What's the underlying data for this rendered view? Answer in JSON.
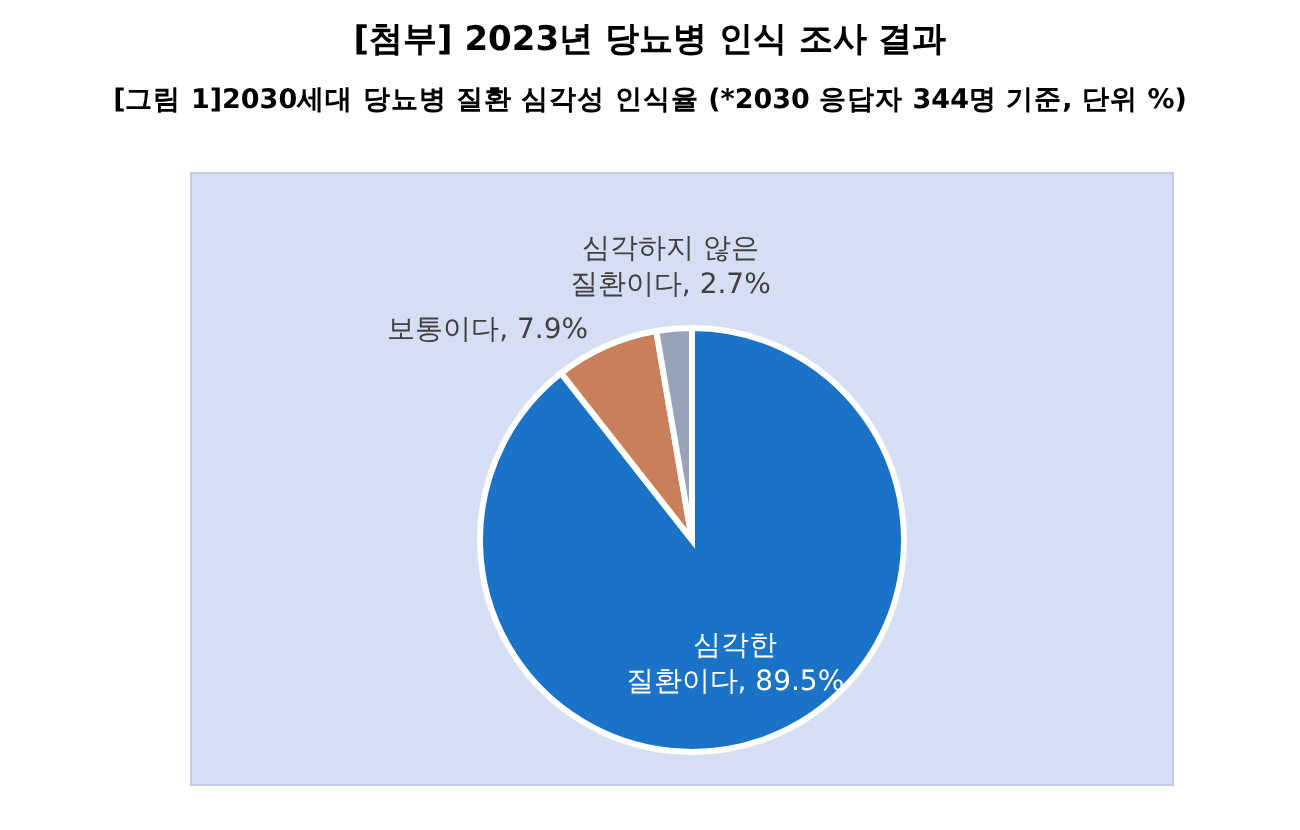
{
  "chart_data": {
    "type": "pie",
    "title": "[첨부] 2023년 당뇨병 인식 조사 결과",
    "subtitle": "[그림 1]2030세대 당뇨병 질환 심각성 인식율 (*2030 응답자 344명 기준, 단위 %)",
    "categories": [
      "심각한 질환이다",
      "보통이다",
      "심각하지 않은 질환이다"
    ],
    "values": [
      89.5,
      7.9,
      2.7
    ],
    "colors": [
      "#1a73c6",
      "#c87f5a",
      "#98a3b8"
    ],
    "value_labels": [
      "89.5%",
      "7.9%",
      "2.7%"
    ],
    "legend": false
  }
}
